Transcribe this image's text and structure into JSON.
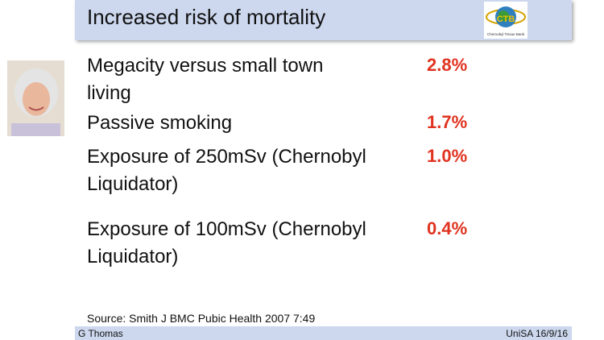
{
  "header": {
    "title": "Increased risk of mortality",
    "logo": {
      "initials": "CTB",
      "caption": "Chernobyl Tissue Bank"
    }
  },
  "rows": [
    {
      "label_lines": [
        "Megacity versus small town",
        "living"
      ],
      "value": "2.8%"
    },
    {
      "label_lines": [
        "Passive smoking"
      ],
      "value": "1.7%"
    },
    {
      "label_lines": [
        "Exposure of 250mSv (Chernobyl",
        "Liquidator)"
      ],
      "value": "1.0%"
    },
    {
      "label_lines": [
        "Exposure of 100mSv (Chernobyl",
        "Liquidator)"
      ],
      "value": "0.4%"
    }
  ],
  "source": "Source:  Smith J BMC Pubic Health 2007 7:49",
  "footer": {
    "left": "G Thomas",
    "right": "UniSA 16/9/16"
  }
}
